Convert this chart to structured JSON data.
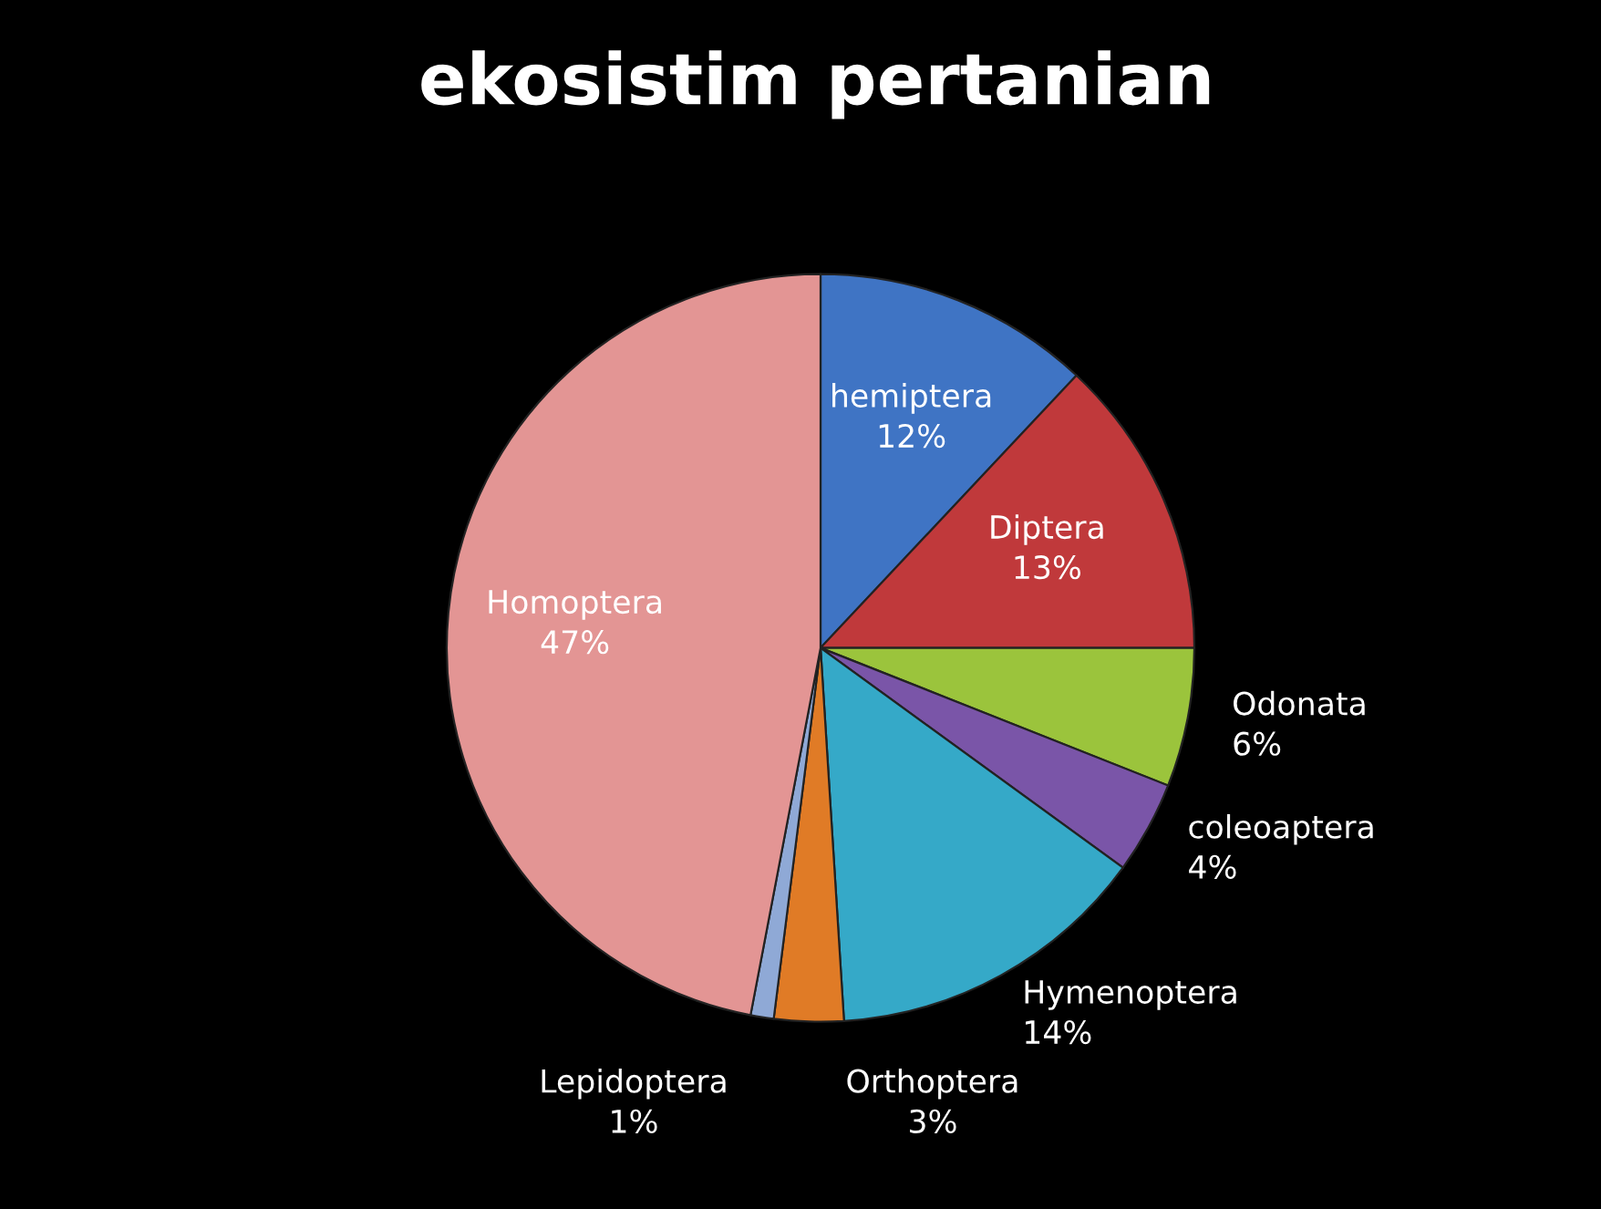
{
  "chart_data": {
    "type": "pie",
    "title": "ekosistim pertanian",
    "categories": [
      "hemiptera",
      "Diptera",
      "Odonata",
      "coleoaptera",
      "Hymenoptera",
      "Orthoptera",
      "Lepidoptera",
      "Homoptera"
    ],
    "values": [
      12,
      13,
      6,
      4,
      14,
      3,
      1,
      47
    ],
    "value_labels": [
      "12%",
      "13%",
      "6%",
      "4%",
      "14%",
      "3%",
      "1%",
      "47%"
    ],
    "colors": [
      "#3f74c4",
      "#c0393b",
      "#9bc43c",
      "#7a55a8",
      "#35a9c8",
      "#e07b26",
      "#8fa9d6",
      "#e39594"
    ],
    "legend": false
  }
}
